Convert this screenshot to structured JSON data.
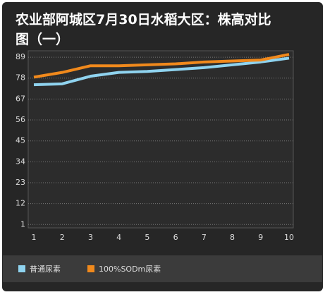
{
  "chart_data": {
    "type": "line",
    "title": [
      "农业部阿城区7月30日水稻大区：株高对比",
      "图（一）"
    ],
    "categories": [
      "1",
      "2",
      "3",
      "4",
      "5",
      "6",
      "7",
      "8",
      "9",
      "10"
    ],
    "series": [
      {
        "name": "普通尿素",
        "color": "#8fd3ef",
        "values": [
          74.5,
          75,
          79,
          81,
          81.5,
          82.5,
          83.5,
          85,
          86.5,
          88.5
        ]
      },
      {
        "name": "100%SODm尿素",
        "color": "#f0891c",
        "values": [
          78.5,
          81,
          84.5,
          84.5,
          85,
          85.5,
          86.5,
          87,
          87.5,
          90.5
        ]
      }
    ],
    "ylim": [
      0,
      92
    ],
    "yticks": [
      1,
      12,
      23,
      34,
      45,
      56,
      67,
      78,
      89
    ],
    "grid": true
  }
}
